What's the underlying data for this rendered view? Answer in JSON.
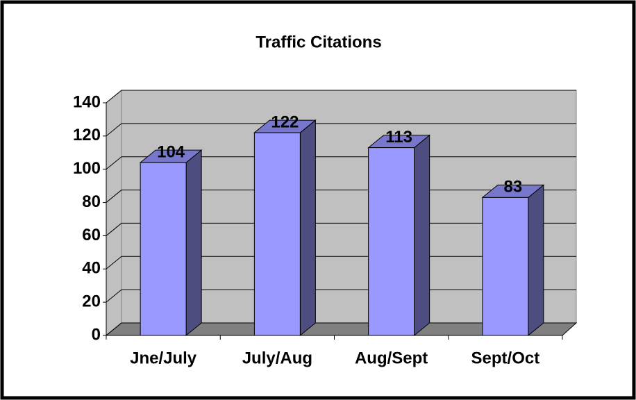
{
  "chart_data": {
    "type": "bar",
    "title": "Traffic Citations",
    "categories": [
      "Jne/July",
      "July/Aug",
      "Aug/Sept",
      "Sept/Oct"
    ],
    "values": [
      104,
      122,
      113,
      83
    ],
    "color": "#9999ff",
    "ylim": [
      0,
      140
    ],
    "yticks": [
      0,
      20,
      40,
      60,
      80,
      100,
      120,
      140
    ],
    "grid": true
  }
}
